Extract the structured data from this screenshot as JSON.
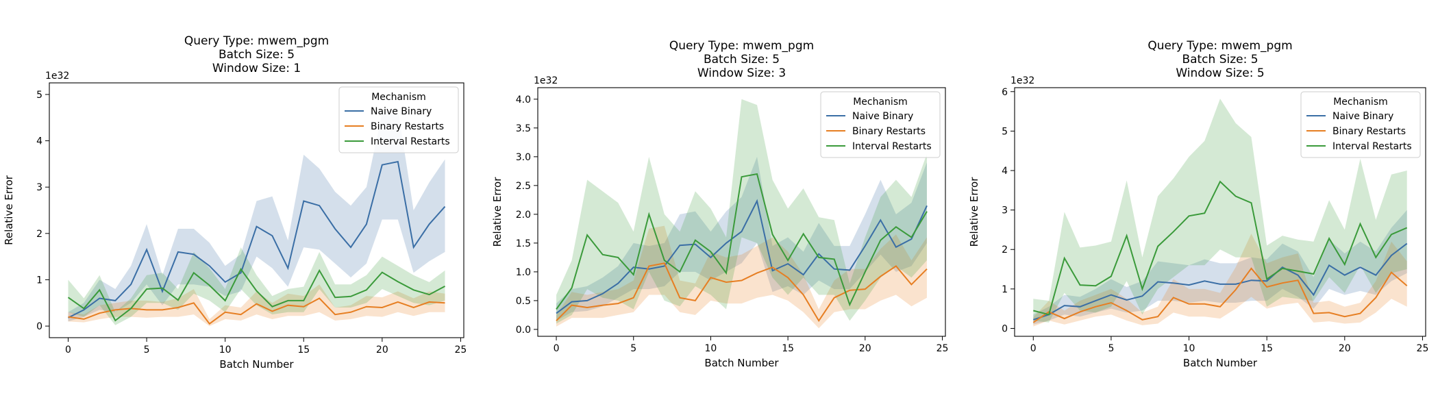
{
  "chart_data": [
    {
      "type": "line",
      "title_lines": [
        "Query Type: mwem_pgm",
        "Batch Size: 5",
        "Window Size: 1"
      ],
      "xlabel": "Batch Number",
      "ylabel": "Relative Error",
      "y_offset_text": "1e32",
      "xlim": [
        -1.2,
        25.2
      ],
      "ylim": [
        -0.25,
        5.25
      ],
      "xticks": [
        0,
        5,
        10,
        15,
        20,
        25
      ],
      "yticks": [
        0,
        1,
        2,
        3,
        4,
        5
      ],
      "ytick_labels": [
        "0",
        "1",
        "2",
        "3",
        "4",
        "5"
      ],
      "legend_title": "Mechanism",
      "legend_position": "top-right",
      "series": [
        {
          "name": "Naive Binary",
          "color": "#3a6ea5",
          "mean": [
            0.18,
            0.35,
            0.6,
            0.55,
            0.9,
            1.65,
            0.75,
            1.6,
            1.55,
            1.3,
            0.95,
            1.15,
            2.15,
            1.95,
            1.25,
            2.7,
            2.6,
            2.1,
            1.7,
            2.2,
            3.48,
            3.55,
            1.7,
            2.2,
            2.58
          ],
          "lower": [
            0.1,
            0.2,
            0.35,
            0.3,
            0.5,
            0.9,
            0.45,
            0.9,
            0.9,
            0.85,
            0.65,
            0.75,
            1.5,
            1.25,
            0.85,
            1.7,
            1.65,
            1.35,
            1.05,
            1.35,
            2.3,
            2.3,
            1.15,
            1.4,
            1.6
          ],
          "upper": [
            0.3,
            0.5,
            1.0,
            0.8,
            1.3,
            2.2,
            1.1,
            2.1,
            2.1,
            1.8,
            1.3,
            1.55,
            2.7,
            2.8,
            1.85,
            3.7,
            3.4,
            2.9,
            2.6,
            3.0,
            4.6,
            4.7,
            2.5,
            3.1,
            3.6
          ]
        },
        {
          "name": "Binary Restarts",
          "color": "#e67e22",
          "mean": [
            0.2,
            0.15,
            0.28,
            0.35,
            0.38,
            0.35,
            0.35,
            0.4,
            0.5,
            0.05,
            0.3,
            0.25,
            0.48,
            0.32,
            0.45,
            0.42,
            0.6,
            0.25,
            0.3,
            0.42,
            0.4,
            0.52,
            0.4,
            0.52,
            0.5
          ],
          "lower": [
            0.1,
            0.08,
            0.15,
            0.2,
            0.2,
            0.18,
            0.2,
            0.2,
            0.25,
            0.0,
            0.15,
            0.12,
            0.25,
            0.15,
            0.22,
            0.22,
            0.3,
            0.12,
            0.15,
            0.22,
            0.2,
            0.3,
            0.22,
            0.3,
            0.3
          ],
          "upper": [
            0.3,
            0.25,
            0.45,
            0.5,
            0.55,
            0.55,
            0.52,
            0.6,
            0.8,
            0.15,
            0.45,
            0.4,
            0.75,
            0.5,
            0.7,
            0.65,
            0.9,
            0.4,
            0.45,
            0.65,
            0.62,
            0.75,
            0.6,
            0.75,
            0.7
          ]
        },
        {
          "name": "Interval Restarts",
          "color": "#3a9a3a",
          "mean": [
            0.62,
            0.38,
            0.78,
            0.12,
            0.38,
            0.8,
            0.82,
            0.56,
            1.15,
            0.88,
            0.55,
            1.23,
            0.76,
            0.42,
            0.55,
            0.55,
            1.2,
            0.62,
            0.64,
            0.78,
            1.16,
            0.96,
            0.78,
            0.68,
            0.86
          ],
          "lower": [
            0.3,
            0.2,
            0.45,
            0.02,
            0.2,
            0.5,
            0.5,
            0.35,
            0.7,
            0.55,
            0.3,
            0.8,
            0.45,
            0.25,
            0.3,
            0.3,
            0.8,
            0.4,
            0.4,
            0.5,
            0.8,
            0.65,
            0.5,
            0.45,
            0.55
          ],
          "upper": [
            1.0,
            0.6,
            1.1,
            0.3,
            0.6,
            1.1,
            1.15,
            0.8,
            1.6,
            1.25,
            0.8,
            1.7,
            1.1,
            0.65,
            0.8,
            0.85,
            1.6,
            0.9,
            0.9,
            1.1,
            1.5,
            1.3,
            1.1,
            0.95,
            1.2
          ]
        }
      ]
    },
    {
      "type": "line",
      "title_lines": [
        "Query Type: mwem_pgm",
        "Batch Size: 5",
        "Window Size: 3"
      ],
      "xlabel": "Batch Number",
      "ylabel": "Relative Error",
      "y_offset_text": "1e32",
      "xlim": [
        -1.2,
        25.2
      ],
      "ylim": [
        -0.12,
        4.2
      ],
      "xticks": [
        0,
        5,
        10,
        15,
        20,
        25
      ],
      "yticks": [
        0,
        0.5,
        1.0,
        1.5,
        2.0,
        2.5,
        3.0,
        3.5,
        4.0
      ],
      "ytick_labels": [
        "0.0",
        "0.5",
        "1.0",
        "1.5",
        "2.0",
        "2.5",
        "3.0",
        "3.5",
        "4.0"
      ],
      "legend_title": "Mechanism",
      "legend_position": "top-right",
      "series": [
        {
          "name": "Naive Binary",
          "color": "#3a6ea5",
          "mean": [
            0.28,
            0.48,
            0.5,
            0.62,
            0.8,
            1.08,
            1.05,
            1.1,
            1.46,
            1.48,
            1.25,
            1.5,
            1.7,
            2.23,
            1.02,
            1.14,
            0.95,
            1.31,
            1.05,
            1.03,
            1.45,
            1.9,
            1.43,
            1.57,
            2.15
          ],
          "lower": [
            0.15,
            0.3,
            0.32,
            0.4,
            0.55,
            0.7,
            0.7,
            0.75,
            1.0,
            1.0,
            0.85,
            1.0,
            1.15,
            1.5,
            0.65,
            0.75,
            0.6,
            0.85,
            0.7,
            0.7,
            1.0,
            1.3,
            1.0,
            1.1,
            1.5
          ],
          "upper": [
            0.45,
            0.7,
            0.75,
            0.9,
            1.1,
            1.5,
            1.45,
            1.5,
            2.0,
            2.05,
            1.7,
            2.05,
            2.3,
            3.0,
            1.45,
            1.6,
            1.35,
            1.85,
            1.45,
            1.45,
            2.0,
            2.6,
            2.0,
            2.2,
            2.9
          ]
        },
        {
          "name": "Binary Restarts",
          "color": "#e67e22",
          "mean": [
            0.15,
            0.42,
            0.38,
            0.42,
            0.45,
            0.55,
            1.1,
            1.15,
            0.55,
            0.5,
            0.9,
            0.82,
            0.85,
            0.98,
            1.08,
            0.9,
            0.6,
            0.15,
            0.55,
            0.68,
            0.7,
            0.92,
            1.1,
            0.78,
            1.05
          ],
          "lower": [
            0.05,
            0.2,
            0.2,
            0.2,
            0.25,
            0.3,
            0.6,
            0.6,
            0.3,
            0.25,
            0.5,
            0.45,
            0.45,
            0.55,
            0.6,
            0.5,
            0.3,
            0.02,
            0.3,
            0.35,
            0.35,
            0.5,
            0.6,
            0.4,
            0.55
          ],
          "upper": [
            0.25,
            0.65,
            0.6,
            0.65,
            0.7,
            0.85,
            1.75,
            1.8,
            0.85,
            0.8,
            1.35,
            1.25,
            1.3,
            1.45,
            1.6,
            1.35,
            0.95,
            0.35,
            0.85,
            1.05,
            1.05,
            1.4,
            1.65,
            1.2,
            1.6
          ]
        },
        {
          "name": "Interval Restarts",
          "color": "#3a9a3a",
          "mean": [
            0.35,
            0.72,
            1.64,
            1.3,
            1.25,
            0.95,
            2.0,
            1.2,
            1.0,
            1.55,
            1.35,
            0.98,
            2.65,
            2.7,
            1.65,
            1.2,
            1.66,
            1.25,
            1.22,
            0.43,
            1.0,
            1.55,
            1.78,
            1.6,
            2.05
          ],
          "lower": [
            0.1,
            0.25,
            0.7,
            0.55,
            0.5,
            0.35,
            1.0,
            0.5,
            0.4,
            0.75,
            0.6,
            0.35,
            1.6,
            1.5,
            0.9,
            0.6,
            0.9,
            0.6,
            0.6,
            0.15,
            0.5,
            0.9,
            1.1,
            0.9,
            1.2
          ],
          "upper": [
            0.6,
            1.2,
            2.6,
            2.4,
            2.2,
            1.7,
            3.0,
            2.0,
            1.7,
            2.4,
            2.1,
            1.6,
            4.0,
            3.9,
            2.6,
            2.1,
            2.45,
            1.95,
            1.9,
            0.8,
            1.6,
            2.3,
            2.6,
            2.3,
            3.05
          ]
        }
      ]
    },
    {
      "type": "line",
      "title_lines": [
        "Query Type: mwem_pgm",
        "Batch Size: 5",
        "Window Size: 5"
      ],
      "xlabel": "Batch Number",
      "ylabel": "Relative Error",
      "y_offset_text": "1e32",
      "xlim": [
        -1.2,
        25.2
      ],
      "ylim": [
        -0.2,
        6.1
      ],
      "xticks": [
        0,
        5,
        10,
        15,
        20,
        25
      ],
      "yticks": [
        0,
        1,
        2,
        3,
        4,
        5,
        6
      ],
      "ytick_labels": [
        "0",
        "1",
        "2",
        "3",
        "4",
        "5",
        "6"
      ],
      "legend_title": "Mechanism",
      "legend_position": "top-right",
      "series": [
        {
          "name": "Naive Binary",
          "color": "#3a6ea5",
          "mean": [
            0.22,
            0.35,
            0.58,
            0.55,
            0.7,
            0.85,
            0.72,
            0.82,
            1.18,
            1.15,
            1.1,
            1.2,
            1.12,
            1.12,
            1.22,
            1.2,
            1.55,
            1.35,
            0.85,
            1.6,
            1.35,
            1.55,
            1.35,
            1.85,
            2.15
          ],
          "lower": [
            0.1,
            0.2,
            0.35,
            0.3,
            0.4,
            0.5,
            0.4,
            0.45,
            0.7,
            0.7,
            0.65,
            0.7,
            0.65,
            0.65,
            0.7,
            0.7,
            1.0,
            0.8,
            0.5,
            1.0,
            0.85,
            0.95,
            0.85,
            1.2,
            1.4
          ],
          "upper": [
            0.35,
            0.55,
            0.85,
            0.8,
            1.0,
            1.25,
            1.05,
            1.2,
            1.7,
            1.65,
            1.6,
            1.75,
            1.65,
            1.65,
            1.8,
            1.75,
            2.15,
            1.95,
            1.3,
            2.25,
            1.9,
            2.2,
            1.95,
            2.55,
            3.0
          ]
        },
        {
          "name": "Binary Restarts",
          "color": "#e67e22",
          "mean": [
            0.15,
            0.42,
            0.25,
            0.42,
            0.55,
            0.65,
            0.45,
            0.22,
            0.3,
            0.78,
            0.62,
            0.62,
            0.55,
            0.98,
            1.52,
            1.05,
            1.15,
            1.22,
            0.38,
            0.4,
            0.3,
            0.38,
            0.78,
            1.42,
            1.08
          ],
          "lower": [
            0.05,
            0.2,
            0.1,
            0.2,
            0.3,
            0.35,
            0.2,
            0.08,
            0.12,
            0.4,
            0.3,
            0.3,
            0.25,
            0.5,
            0.8,
            0.5,
            0.6,
            0.65,
            0.15,
            0.18,
            0.12,
            0.15,
            0.4,
            0.75,
            0.55
          ],
          "upper": [
            0.28,
            0.7,
            0.45,
            0.7,
            0.85,
            1.0,
            0.75,
            0.4,
            0.55,
            1.25,
            1.0,
            1.0,
            0.9,
            1.55,
            2.4,
            1.65,
            1.8,
            1.9,
            0.65,
            0.7,
            0.55,
            0.65,
            1.2,
            2.2,
            1.7
          ]
        },
        {
          "name": "Interval Restarts",
          "color": "#3a9a3a",
          "mean": [
            0.45,
            0.35,
            1.78,
            1.1,
            1.08,
            1.32,
            2.35,
            1.0,
            2.08,
            2.45,
            2.85,
            2.92,
            3.72,
            3.35,
            3.18,
            1.25,
            1.52,
            1.45,
            1.38,
            2.28,
            1.62,
            2.65,
            1.8,
            2.38,
            2.55
          ],
          "lower": [
            0.2,
            0.15,
            0.9,
            0.45,
            0.4,
            0.55,
            1.2,
            0.35,
            1.0,
            1.3,
            1.6,
            1.6,
            2.0,
            1.8,
            1.8,
            0.55,
            0.8,
            0.75,
            0.7,
            1.3,
            0.9,
            1.6,
            0.9,
            1.4,
            1.5
          ],
          "upper": [
            0.75,
            0.7,
            2.95,
            2.05,
            2.1,
            2.2,
            3.75,
            1.8,
            3.35,
            3.8,
            4.35,
            4.75,
            5.82,
            5.2,
            4.85,
            2.1,
            2.35,
            2.25,
            2.2,
            3.25,
            2.5,
            4.3,
            2.75,
            3.9,
            4.0
          ]
        }
      ]
    }
  ]
}
